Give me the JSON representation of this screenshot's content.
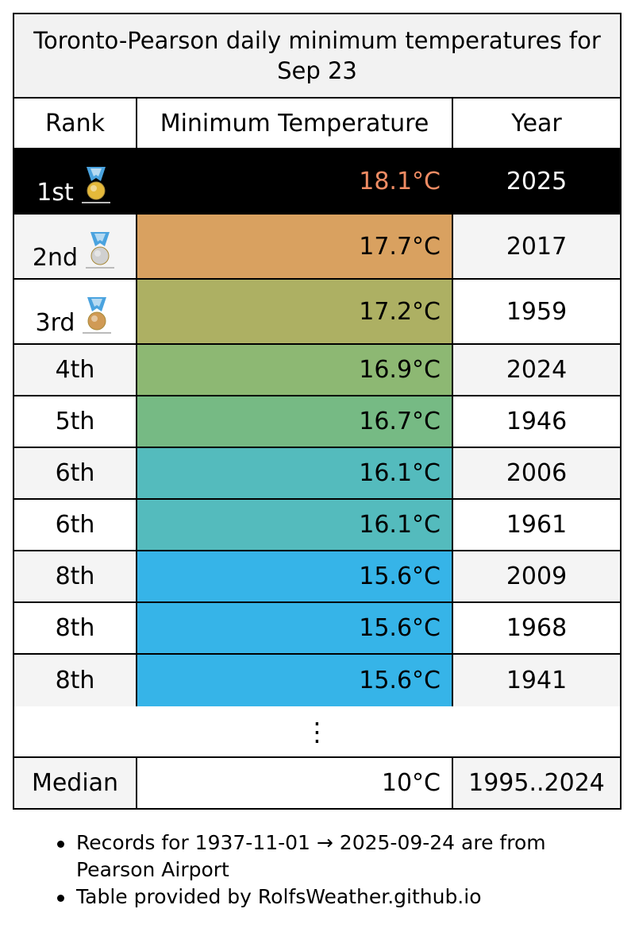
{
  "chart_data": {
    "type": "table",
    "title": "Toronto-Pearson daily minimum temperatures for Sep 23",
    "columns": [
      "Rank",
      "Minimum Temperature",
      "Year"
    ],
    "rows": [
      {
        "rank": "1st",
        "temp": "18.1°C",
        "year": "2025",
        "medal": "gold-medal-icon",
        "row_bg": "#000000",
        "temp_bg": "#000000",
        "temp_color": "#f08c64",
        "text_color": "#ffffff"
      },
      {
        "rank": "2nd",
        "temp": "17.7°C",
        "year": "2017",
        "medal": "silver-medal-icon",
        "row_bg": "#f4f4f4",
        "temp_bg": "#d9a160",
        "temp_color": "#000000",
        "text_color": "#000000"
      },
      {
        "rank": "3rd",
        "temp": "17.2°C",
        "year": "1959",
        "medal": "bronze-medal-icon",
        "row_bg": "#ffffff",
        "temp_bg": "#adb063",
        "temp_color": "#000000",
        "text_color": "#000000"
      },
      {
        "rank": "4th",
        "temp": "16.9°C",
        "year": "2024",
        "row_bg": "#f4f4f4",
        "temp_bg": "#8db873",
        "temp_color": "#000000",
        "text_color": "#000000"
      },
      {
        "rank": "5th",
        "temp": "16.7°C",
        "year": "1946",
        "row_bg": "#ffffff",
        "temp_bg": "#76ba84",
        "temp_color": "#000000",
        "text_color": "#000000"
      },
      {
        "rank": "6th",
        "temp": "16.1°C",
        "year": "2006",
        "row_bg": "#f4f4f4",
        "temp_bg": "#54bbbd",
        "temp_color": "#000000",
        "text_color": "#000000"
      },
      {
        "rank": "6th",
        "temp": "16.1°C",
        "year": "1961",
        "row_bg": "#ffffff",
        "temp_bg": "#54bbbd",
        "temp_color": "#000000",
        "text_color": "#000000"
      },
      {
        "rank": "8th",
        "temp": "15.6°C",
        "year": "2009",
        "row_bg": "#f4f4f4",
        "temp_bg": "#36b4e8",
        "temp_color": "#000000",
        "text_color": "#000000"
      },
      {
        "rank": "8th",
        "temp": "15.6°C",
        "year": "1968",
        "row_bg": "#ffffff",
        "temp_bg": "#36b4e8",
        "temp_color": "#000000",
        "text_color": "#000000"
      },
      {
        "rank": "8th",
        "temp": "15.6°C",
        "year": "1941",
        "row_bg": "#f4f4f4",
        "temp_bg": "#36b4e8",
        "temp_color": "#000000",
        "text_color": "#000000"
      }
    ],
    "ellipsis": "⋮",
    "median": {
      "label": "Median",
      "temp": "10°C",
      "years": "1995..2024"
    }
  },
  "notes": [
    "Records for 1937-11-01 → 2025-09-24 are from Pearson Airport",
    "Table provided by RolfsWeather.github.io"
  ],
  "colors": {
    "header_bg": "#f2f2f2",
    "border": "#000000",
    "medal_ribbon": "#4aa3df",
    "gold": "#e5b93a",
    "silver": "#d0d0d0",
    "bronze": "#d09a55"
  }
}
